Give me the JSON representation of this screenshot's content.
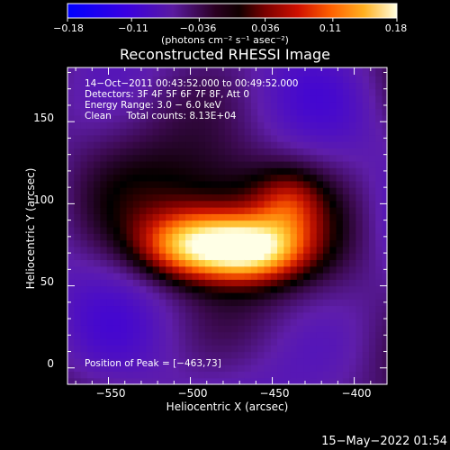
{
  "colorbar": {
    "ticks": [
      "−0.18",
      "−0.11",
      "−0.036",
      "0.036",
      "0.11",
      "0.18"
    ],
    "units": "(photons cm⁻² s⁻¹ asec⁻²)"
  },
  "chart_data": {
    "type": "heatmap",
    "title": "Reconstructed RHESSI Image",
    "xlabel": "Heliocentric X (arcsec)",
    "ylabel": "Heliocentric Y (arcsec)",
    "xlim": [
      -575,
      -380
    ],
    "ylim": [
      -10,
      183
    ],
    "xticks": [
      -550,
      -500,
      -450,
      -400
    ],
    "xtick_labels": [
      "−550",
      "−500",
      "−450",
      "−400"
    ],
    "yticks": [
      0,
      50,
      100,
      150
    ],
    "ytick_labels": [
      "0",
      "50",
      "100",
      "150"
    ],
    "colorscale_range": [
      -0.18,
      0.18
    ],
    "peak": {
      "x": -463,
      "y": 73
    },
    "sources": [
      {
        "x": -500,
        "y": 75,
        "sx": 22,
        "sy": 14,
        "amp": 0.15
      },
      {
        "x": -463,
        "y": 73,
        "sx": 22,
        "sy": 13,
        "amp": 0.18
      },
      {
        "x": -480,
        "y": 95,
        "sx": 45,
        "sy": 28,
        "amp": 0.07
      },
      {
        "x": -440,
        "y": 100,
        "sx": 14,
        "sy": 14,
        "amp": 0.06
      }
    ],
    "annotations": [
      "14−Oct−2011 00:43:52.000 to 00:49:52.000",
      "Detectors: 3F 4F 5F 6F 7F 8F, Att 0",
      "Energy Range: 3.0 − 6.0 keV",
      "Clean     Total counts: 8.13E+04"
    ],
    "peak_label": "Position of Peak = [−463,73]"
  },
  "footer": "15−May−2022 01:54"
}
